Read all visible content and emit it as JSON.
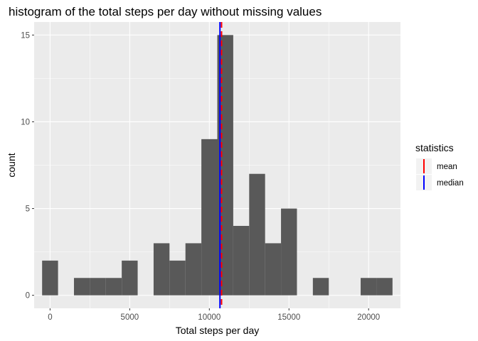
{
  "chart_data": {
    "type": "bar",
    "title": "histogram of the total steps per day without missing values",
    "xlabel": "Total steps per day",
    "ylabel": "count",
    "xlim": [
      -1000,
      22000
    ],
    "ylim": [
      -0.75,
      15.75
    ],
    "binwidth": 1000,
    "bins": [
      {
        "center": 0,
        "count": 2
      },
      {
        "center": 1000,
        "count": 0
      },
      {
        "center": 2000,
        "count": 1
      },
      {
        "center": 3000,
        "count": 1
      },
      {
        "center": 4000,
        "count": 1
      },
      {
        "center": 5000,
        "count": 2
      },
      {
        "center": 6000,
        "count": 0
      },
      {
        "center": 7000,
        "count": 3
      },
      {
        "center": 8000,
        "count": 2
      },
      {
        "center": 9000,
        "count": 3
      },
      {
        "center": 10000,
        "count": 9
      },
      {
        "center": 11000,
        "count": 15
      },
      {
        "center": 12000,
        "count": 4
      },
      {
        "center": 13000,
        "count": 7
      },
      {
        "center": 14000,
        "count": 3
      },
      {
        "center": 15000,
        "count": 5
      },
      {
        "center": 16000,
        "count": 0
      },
      {
        "center": 17000,
        "count": 1
      },
      {
        "center": 18000,
        "count": 0
      },
      {
        "center": 19000,
        "count": 0
      },
      {
        "center": 20000,
        "count": 1
      },
      {
        "center": 21000,
        "count": 1
      }
    ],
    "x_ticks": [
      {
        "value": 0,
        "label": "0"
      },
      {
        "value": 5000,
        "label": "5000"
      },
      {
        "value": 10000,
        "label": "10000"
      },
      {
        "value": 15000,
        "label": "15000"
      },
      {
        "value": 20000,
        "label": "20000"
      }
    ],
    "y_ticks": [
      {
        "value": 0,
        "label": "0"
      },
      {
        "value": 5,
        "label": "5"
      },
      {
        "value": 10,
        "label": "10"
      },
      {
        "value": 15,
        "label": "15"
      }
    ],
    "reference_lines": [
      {
        "name": "mean",
        "value": 10766.19,
        "color": "#ff0000",
        "style": "dashed"
      },
      {
        "name": "median",
        "value": 10666,
        "color": "#0000ff",
        "style": "solid"
      }
    ],
    "legend": {
      "title": "statistics",
      "placement": "right"
    },
    "colors": {
      "panel": "#ebebeb",
      "grid": "#ffffff",
      "bar": "#595959"
    },
    "grid": true
  }
}
